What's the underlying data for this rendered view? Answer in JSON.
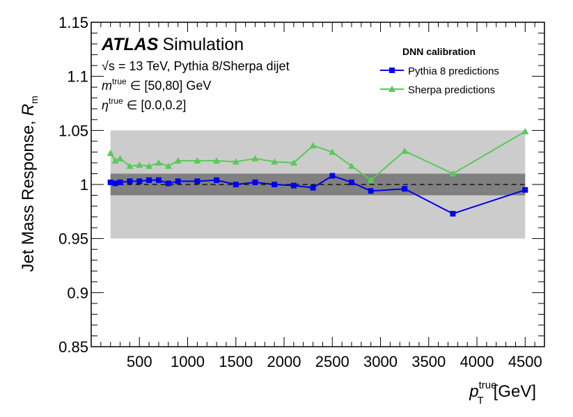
{
  "chart_data": {
    "type": "line",
    "experiment": "ATLAS",
    "experiment_suffix": "Simulation",
    "info_lines": {
      "energy_prefix": "√s",
      "energy_rest": " = 13 TeV, Pythia 8/Sherpa dijet",
      "mass_symbol": "m",
      "mass_sup": "true",
      "mass_rest": " ∈ [50,80] GeV",
      "eta_symbol": "η",
      "eta_sup": "true",
      "eta_rest": " ∈ [0.0,0.2]"
    },
    "legend": {
      "title": "DNN calibration",
      "position": "top-right"
    },
    "xlabel": {
      "symbol": "p",
      "sup": "true",
      "sub": "T",
      "unit": "[GeV]"
    },
    "ylabel": {
      "text": "Jet Mass Response, ",
      "symbol": "R",
      "sub": "m"
    },
    "xlim": [
      0,
      4700
    ],
    "ylim": [
      0.85,
      1.15
    ],
    "xticks": [
      500,
      1000,
      1500,
      2000,
      2500,
      3000,
      3500,
      4000,
      4500
    ],
    "xtick_labels": [
      "500",
      "1000",
      "1500",
      "2000",
      "2500",
      "3000",
      "3500",
      "4000",
      "4500"
    ],
    "yticks": [
      0.85,
      0.9,
      0.95,
      1,
      1.05,
      1.1,
      1.15
    ],
    "ytick_labels": [
      "0.85",
      "0.9",
      "0.95",
      "1",
      "1.05",
      "1.1",
      "1.15"
    ],
    "bands": [
      {
        "name": "±5%",
        "from": 0.95,
        "to": 1.05,
        "xrange": [
          200,
          4500
        ],
        "color": "#cccccc"
      },
      {
        "name": "±1%",
        "from": 0.99,
        "to": 1.01,
        "xrange": [
          200,
          4500
        ],
        "color": "#808080"
      }
    ],
    "reference_line": {
      "y": 1.0,
      "xrange": [
        200,
        4500
      ],
      "style": "dashed"
    },
    "series": [
      {
        "name": "Pythia 8 predictions",
        "color": "#0000ee",
        "marker": "square",
        "x": [
          200,
          250,
          300,
          400,
          500,
          600,
          700,
          800,
          900,
          1100,
          1300,
          1500,
          1700,
          1900,
          2100,
          2300,
          2500,
          2700,
          2900,
          3250,
          3750,
          4500
        ],
        "y": [
          1.002,
          1.001,
          1.002,
          1.003,
          1.003,
          1.004,
          1.004,
          1.001,
          1.003,
          1.003,
          1.004,
          1.0,
          1.002,
          1.0,
          0.999,
          0.997,
          1.008,
          1.002,
          0.994,
          0.996,
          0.973,
          0.995
        ]
      },
      {
        "name": "Sherpa predictions",
        "color": "#55cc55",
        "marker": "triangle",
        "x": [
          200,
          250,
          300,
          400,
          500,
          600,
          700,
          800,
          900,
          1100,
          1300,
          1500,
          1700,
          1900,
          2100,
          2300,
          2500,
          2700,
          2900,
          3250,
          3750,
          4500
        ],
        "y": [
          1.029,
          1.022,
          1.024,
          1.017,
          1.018,
          1.017,
          1.02,
          1.017,
          1.022,
          1.022,
          1.022,
          1.021,
          1.024,
          1.021,
          1.02,
          1.036,
          1.03,
          1.017,
          1.004,
          1.031,
          1.01,
          1.049
        ]
      }
    ]
  }
}
